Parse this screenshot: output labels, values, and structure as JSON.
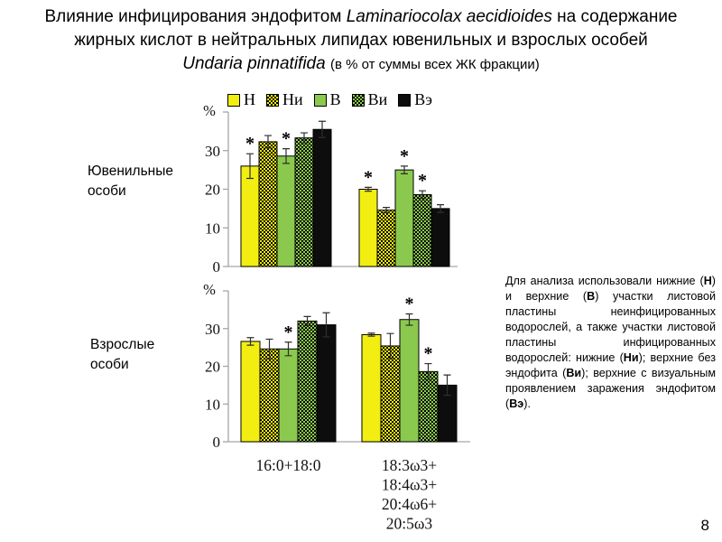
{
  "page_number": "8",
  "title": {
    "lines": [
      [
        {
          "text": "Влияние инфицирования эндофитом ",
          "style": "normal"
        },
        {
          "text": "Laminariocolax aecidioides",
          "style": "italic"
        },
        {
          "text": " на содержание",
          "style": "normal"
        }
      ],
      [
        {
          "text": "жирных кислот в нейтральных липидах ювенильных и взрослых особей",
          "style": "normal"
        }
      ],
      [
        {
          "text": "Undaria pinnatifida",
          "style": "italic"
        },
        {
          "text": " ",
          "style": "normal"
        },
        {
          "text": "(в % от суммы всех ЖК фракции)",
          "style": "small"
        }
      ]
    ]
  },
  "legend": {
    "items": [
      {
        "label": "Н",
        "swatch": "yellow"
      },
      {
        "label": "Ни",
        "swatch": "yellow-check"
      },
      {
        "label": "В",
        "swatch": "green"
      },
      {
        "label": "Ви",
        "swatch": "green-check"
      },
      {
        "label": "Вэ",
        "swatch": "black"
      }
    ]
  },
  "colors": {
    "yellow": "#f2ee12",
    "green": "#8bc94e",
    "black": "#0d0d0d",
    "axis": "#a6a6a6",
    "error_bar": "#2e2e2e"
  },
  "significance_marker": "*",
  "chart_data": [
    {
      "type": "bar",
      "title": "Ювенильные особи",
      "ylabel": "%",
      "yticks": [
        0,
        10,
        20,
        30
      ],
      "ylim": [
        0,
        40
      ],
      "grid": false,
      "legend_position": "top",
      "categories": [
        [
          "16:0+18:0"
        ],
        [
          "18:3ω3+",
          "18:4ω3+",
          "20:4ω6+",
          "20:5ω3"
        ]
      ],
      "series": [
        {
          "name": "Н",
          "swatch": "yellow",
          "values": [
            26.0,
            20.0
          ],
          "errors": [
            3.2,
            0.5
          ],
          "significant": [
            true,
            true
          ]
        },
        {
          "name": "Ни",
          "swatch": "yellow-check",
          "values": [
            32.3,
            14.6
          ],
          "errors": [
            1.6,
            0.7
          ],
          "significant": [
            false,
            false
          ]
        },
        {
          "name": "В",
          "swatch": "green",
          "values": [
            28.6,
            25.0
          ],
          "errors": [
            1.9,
            1.0
          ],
          "significant": [
            true,
            true
          ]
        },
        {
          "name": "Ви",
          "swatch": "green-check",
          "values": [
            33.3,
            18.6
          ],
          "errors": [
            1.3,
            1.0
          ],
          "significant": [
            false,
            true
          ]
        },
        {
          "name": "Вэ",
          "swatch": "black",
          "values": [
            35.5,
            15.0
          ],
          "errors": [
            2.1,
            1.0
          ],
          "significant": [
            false,
            false
          ]
        }
      ]
    },
    {
      "type": "bar",
      "title": "Взрослые особи",
      "ylabel": "%",
      "yticks": [
        0,
        10,
        20,
        30
      ],
      "ylim": [
        0,
        40
      ],
      "grid": false,
      "legend_position": "top",
      "categories": [
        [
          "16:0+18:0"
        ],
        [
          "18:3ω3+",
          "18:4ω3+",
          "20:4ω6+",
          "20:5ω3"
        ]
      ],
      "series": [
        {
          "name": "Н",
          "swatch": "yellow",
          "values": [
            26.6,
            28.4
          ],
          "errors": [
            1.0,
            0.4
          ],
          "significant": [
            false,
            false
          ]
        },
        {
          "name": "Ни",
          "swatch": "yellow-check",
          "values": [
            24.6,
            25.4
          ],
          "errors": [
            2.6,
            3.3
          ],
          "significant": [
            false,
            false
          ]
        },
        {
          "name": "В",
          "swatch": "green",
          "values": [
            24.6,
            32.4
          ],
          "errors": [
            1.8,
            1.5
          ],
          "significant": [
            true,
            true
          ]
        },
        {
          "name": "Ви",
          "swatch": "green-check",
          "values": [
            32.0,
            18.6
          ],
          "errors": [
            1.2,
            2.1
          ],
          "significant": [
            false,
            true
          ]
        },
        {
          "name": "Вэ",
          "swatch": "black",
          "values": [
            31.0,
            15.0
          ],
          "errors": [
            3.2,
            2.7
          ],
          "significant": [
            false,
            false
          ]
        }
      ]
    }
  ],
  "note": {
    "segments": [
      {
        "text": "Для анализа использовали нижние (",
        "bold": false
      },
      {
        "text": "Н",
        "bold": true
      },
      {
        "text": ") и верхние (",
        "bold": false
      },
      {
        "text": "В",
        "bold": true
      },
      {
        "text": ") участки листовой пластины неинфицированных водорослей, а также участки листовой пластины инфицированных водорослей: нижние (",
        "bold": false
      },
      {
        "text": "Ни",
        "bold": true
      },
      {
        "text": "); верхние без эндофита (",
        "bold": false
      },
      {
        "text": "Ви",
        "bold": true
      },
      {
        "text": "); верхние с визуальным проявлением заражения эндофитом (",
        "bold": false
      },
      {
        "text": "Вэ",
        "bold": true
      },
      {
        "text": ").",
        "bold": false
      }
    ]
  }
}
